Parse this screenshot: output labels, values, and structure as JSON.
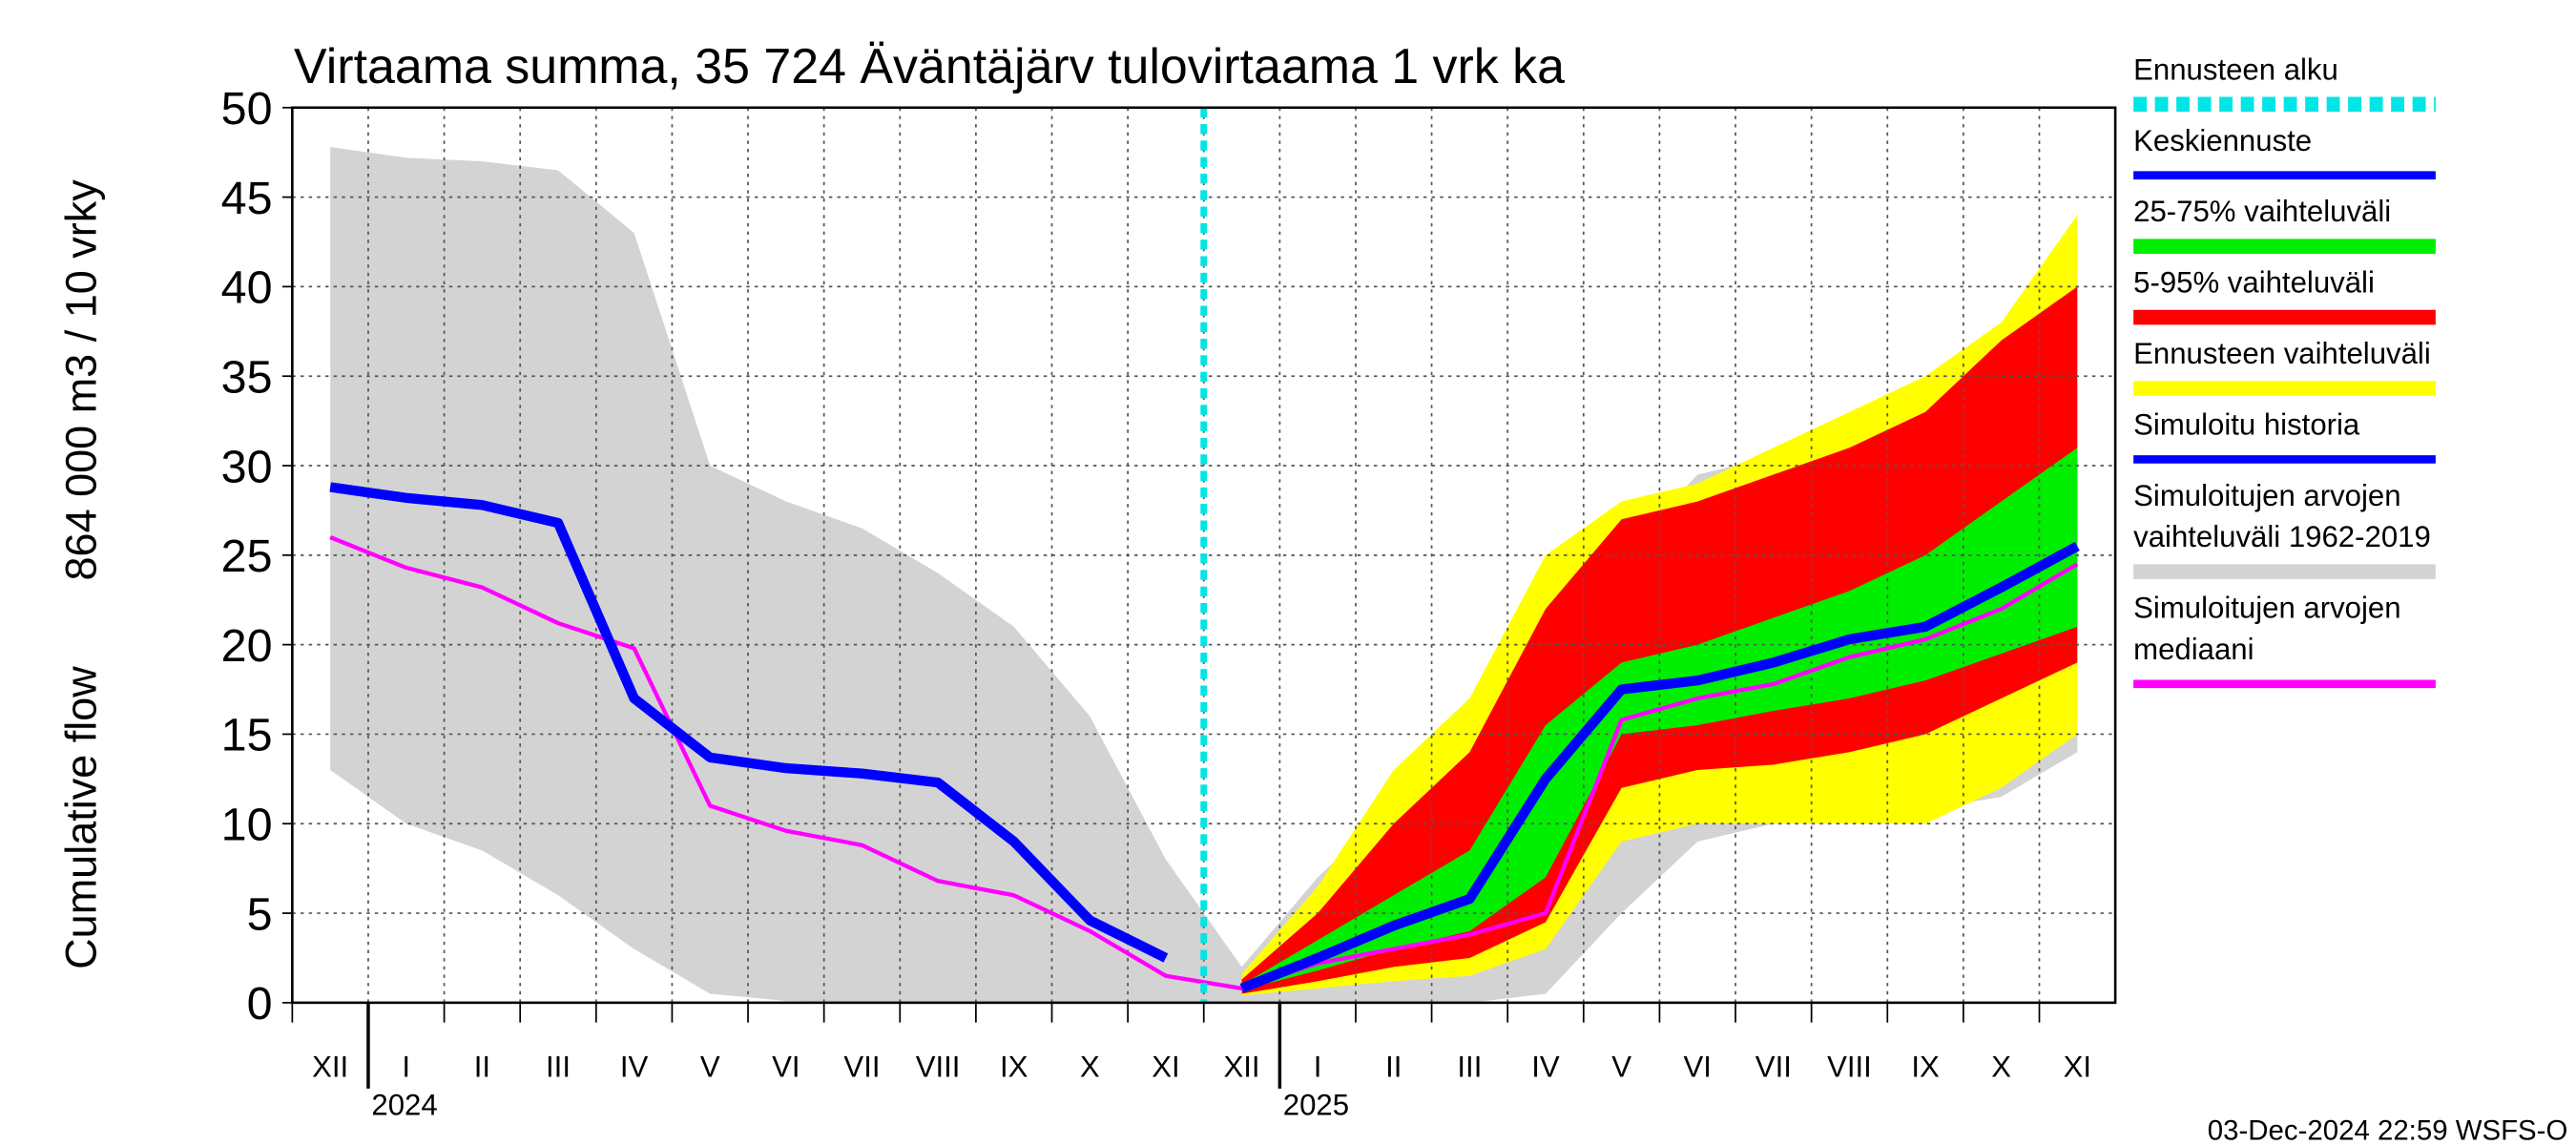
{
  "chart_data": {
    "type": "line",
    "title": "Virtaama summa, 35 724 Äväntäjärv tulovirtaama 1 vrk ka",
    "ylabel": "Cumulative flow",
    "ylabel_units": "864 000 m3 / 10 vrky",
    "categories": [
      "XII",
      "I",
      "II",
      "III",
      "IV",
      "V",
      "VI",
      "VII",
      "VIII",
      "IX",
      "X",
      "XI",
      "XII",
      "I",
      "II",
      "III",
      "IV",
      "V",
      "VI",
      "VII",
      "VIII",
      "IX",
      "X",
      "XI"
    ],
    "years": [
      "2024",
      "2025"
    ],
    "ylim": [
      0,
      50
    ],
    "yticks": [
      0,
      5,
      10,
      15,
      20,
      25,
      30,
      35,
      40,
      45,
      50
    ],
    "grid": true,
    "timestamp": "03-Dec-2024 22:59 WSFS-O",
    "series": [
      {
        "name": "Ennusteen alku",
        "color": "#00e5e5",
        "style": "vline"
      },
      {
        "name": "Keskiennuste",
        "color": "#0000ff",
        "style": "line",
        "values": [
          null,
          null,
          null,
          null,
          null,
          null,
          null,
          null,
          null,
          null,
          null,
          null,
          0.8,
          2.5,
          4.3,
          5.8,
          12.5,
          17.5,
          18,
          19,
          20.3,
          21,
          23.2,
          25.5
        ]
      },
      {
        "name": "25-75% vaihteluväli",
        "color": "#00ee00",
        "style": "band",
        "low": [
          null,
          null,
          null,
          null,
          null,
          null,
          null,
          null,
          null,
          null,
          null,
          null,
          0.7,
          1.8,
          3,
          4,
          7,
          15,
          15.5,
          16.3,
          17,
          18,
          19.5,
          21
        ],
        "high": [
          null,
          null,
          null,
          null,
          null,
          null,
          null,
          null,
          null,
          null,
          null,
          null,
          1,
          3.5,
          6,
          8.5,
          15.5,
          19,
          20,
          21.5,
          23,
          25,
          28,
          31
        ]
      },
      {
        "name": "5-95% vaihteluväli",
        "color": "#ff0000",
        "style": "band",
        "low": [
          null,
          null,
          null,
          null,
          null,
          null,
          null,
          null,
          null,
          null,
          null,
          null,
          0.5,
          1.2,
          2,
          2.5,
          4.5,
          12,
          13,
          13.3,
          14,
          15,
          17,
          19
        ],
        "high": [
          null,
          null,
          null,
          null,
          null,
          null,
          null,
          null,
          null,
          null,
          null,
          null,
          1.3,
          5,
          10,
          14,
          22,
          27,
          28,
          29.5,
          31,
          33,
          37,
          40
        ]
      },
      {
        "name": "Ennusteen vaihteluväli",
        "color": "#ffff00",
        "style": "band",
        "low": [
          null,
          null,
          null,
          null,
          null,
          null,
          null,
          null,
          null,
          null,
          null,
          null,
          0.4,
          0.8,
          1.2,
          1.5,
          3,
          9,
          10,
          10,
          10,
          10,
          12,
          15
        ],
        "high": [
          null,
          null,
          null,
          null,
          null,
          null,
          null,
          null,
          null,
          null,
          null,
          null,
          1.6,
          6.5,
          13,
          17,
          25,
          28,
          29,
          31,
          33,
          35,
          38,
          44
        ]
      },
      {
        "name": "Simuloitu historia",
        "color": "#0000ff",
        "style": "line",
        "values": [
          28.8,
          28.2,
          27.8,
          26.8,
          17,
          13.7,
          13.1,
          12.8,
          12.3,
          9,
          4.6,
          2.5,
          null,
          null,
          null,
          null,
          null,
          null,
          null,
          null,
          null,
          null,
          null,
          null
        ]
      },
      {
        "name": "Simuloitujen arvojen\nvaihteluväli 1962-2019",
        "color": "#d3d3d3",
        "style": "band",
        "low": [
          13,
          10,
          8.5,
          6,
          3,
          0.5,
          0.1,
          0,
          0,
          0,
          0,
          0,
          0,
          0,
          0,
          0,
          0.5,
          5,
          9,
          10,
          10.5,
          10.8,
          11.5,
          14
        ],
        "high": [
          47.8,
          47.2,
          47,
          46.5,
          43,
          30,
          28,
          26.5,
          24,
          21,
          16,
          8,
          2,
          7,
          11,
          13,
          19,
          25,
          29.5,
          30.5,
          32,
          34,
          37,
          43
        ]
      },
      {
        "name": "Simuloitujen arvojen\nmediaani",
        "color": "#ff00ff",
        "style": "line",
        "values": [
          26,
          24.3,
          23.2,
          21.2,
          19.8,
          11,
          9.6,
          8.8,
          6.8,
          6,
          4,
          1.5,
          0.8,
          2.2,
          3,
          3.8,
          5,
          15.8,
          17,
          17.8,
          19.3,
          20.3,
          22,
          24.5
        ]
      }
    ]
  }
}
